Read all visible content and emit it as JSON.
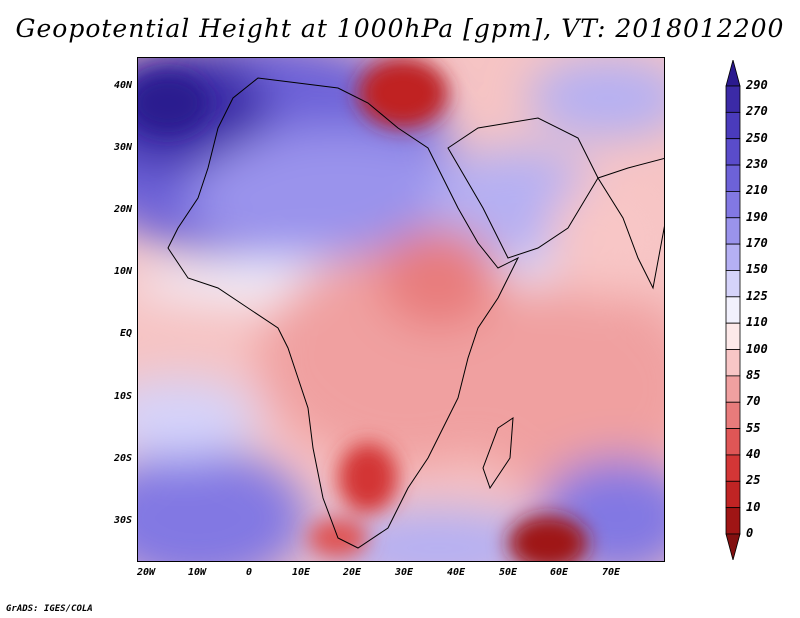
{
  "title": "Geopotential Height at 1000hPa [gpm], VT: 2018012200",
  "credit": "GrADS: IGES/COLA",
  "map": {
    "variable": "Geopotential Height",
    "level": "1000hPa",
    "units": "gpm",
    "valid_time": "2018012200",
    "lat_labels": [
      "40N",
      "30N",
      "20N",
      "10N",
      "EQ",
      "10S",
      "20S",
      "30S"
    ],
    "lon_labels": [
      "20W",
      "10W",
      "0",
      "10E",
      "20E",
      "30E",
      "40E",
      "50E",
      "60E",
      "70E"
    ]
  },
  "colorbar": {
    "levels": [
      "290",
      "270",
      "250",
      "230",
      "210",
      "190",
      "170",
      "150",
      "125",
      "110",
      "100",
      "85",
      "70",
      "55",
      "40",
      "25",
      "10",
      "0"
    ],
    "colors": [
      "#2b1a8f",
      "#3b2aa6",
      "#4a3bbc",
      "#5a4ccb",
      "#6d62d8",
      "#8278e3",
      "#9a93ec",
      "#b5b0f3",
      "#d5d3fa",
      "#f2f1fd",
      "#fde9e9",
      "#f8c6c6",
      "#f0a0a0",
      "#e87b7b",
      "#df5656",
      "#d33636",
      "#c02424",
      "#9f1515",
      "#821010"
    ]
  }
}
